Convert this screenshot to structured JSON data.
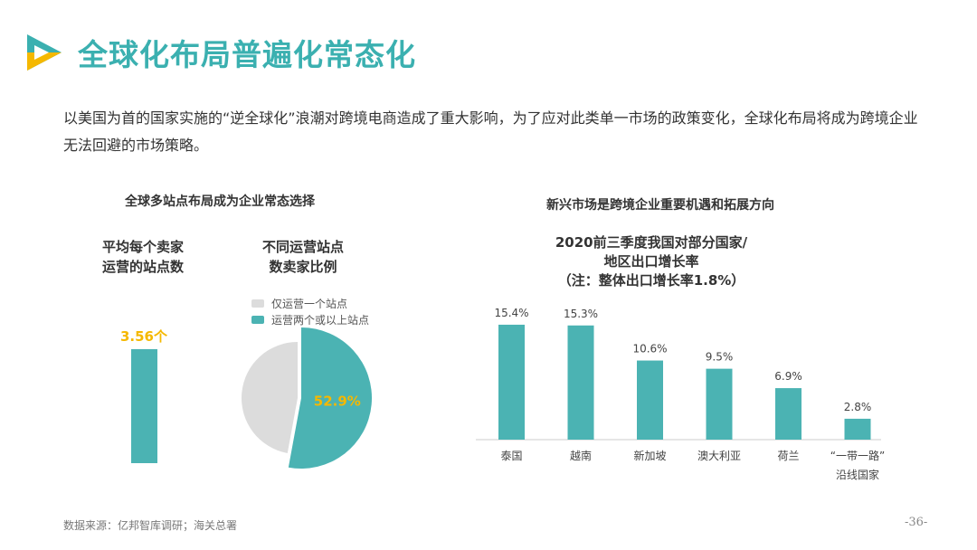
{
  "header": {
    "title": "全球化布局普遍化常态化"
  },
  "intro": "以美国为首的国家实施的“逆全球化”浪潮对跨境电商造成了重大影响，为了应对此类单一市场的政策变化，全球化布局将成为跨境企业无法回避的市场策略。",
  "left_section": {
    "title": "全球多站点布局成为企业常态选择",
    "avg_title_line1": "平均每个卖家",
    "avg_title_line2": "运营的站点数",
    "ratio_title_line1": "不同运营站点",
    "ratio_title_line2": "数卖家比例"
  },
  "right_section": {
    "title": "新兴市场是跨境企业重要机遇和拓展方向"
  },
  "colors": {
    "accent": "#3bb0b0",
    "bar": "#4bb3b3",
    "highlight": "#f5b800",
    "pie_other": "#dcdcdc"
  },
  "chart_data": [
    {
      "type": "bar",
      "categories": [
        ""
      ],
      "values": [
        3.56
      ],
      "value_label": "3.56个"
    },
    {
      "type": "pie",
      "legend_position": "top",
      "slices": [
        {
          "label": "仅运营一个站点",
          "value": 47.1,
          "color": "#dcdcdc"
        },
        {
          "label": "运营两个或以上站点",
          "value": 52.9,
          "color": "#4bb3b3",
          "data_label": "52.9%"
        }
      ]
    },
    {
      "type": "bar",
      "title_line1": "2020前三季度我国对部分国家/",
      "title_line2": "地区出口增长率",
      "title_line3": "（注：整体出口增长率1.8%）",
      "categories": [
        "泰国",
        "越南",
        "新加坡",
        "澳大利亚",
        "荷兰",
        "“一带一路”沿线国家"
      ],
      "category_lines": [
        [
          "泰国"
        ],
        [
          "越南"
        ],
        [
          "新加坡"
        ],
        [
          "澳大利亚"
        ],
        [
          "荷兰"
        ],
        [
          "“一带一路”",
          "沿线国家"
        ]
      ],
      "values": [
        15.4,
        15.3,
        10.6,
        9.5,
        6.9,
        2.8
      ],
      "data_labels": [
        "15.4%",
        "15.3%",
        "10.6%",
        "9.5%",
        "6.9%",
        "2.8%"
      ],
      "ylim": [
        0,
        16
      ],
      "grid": false
    }
  ],
  "footer": {
    "source": "数据来源：亿邦智库调研；海关总署",
    "page": "-36-"
  }
}
